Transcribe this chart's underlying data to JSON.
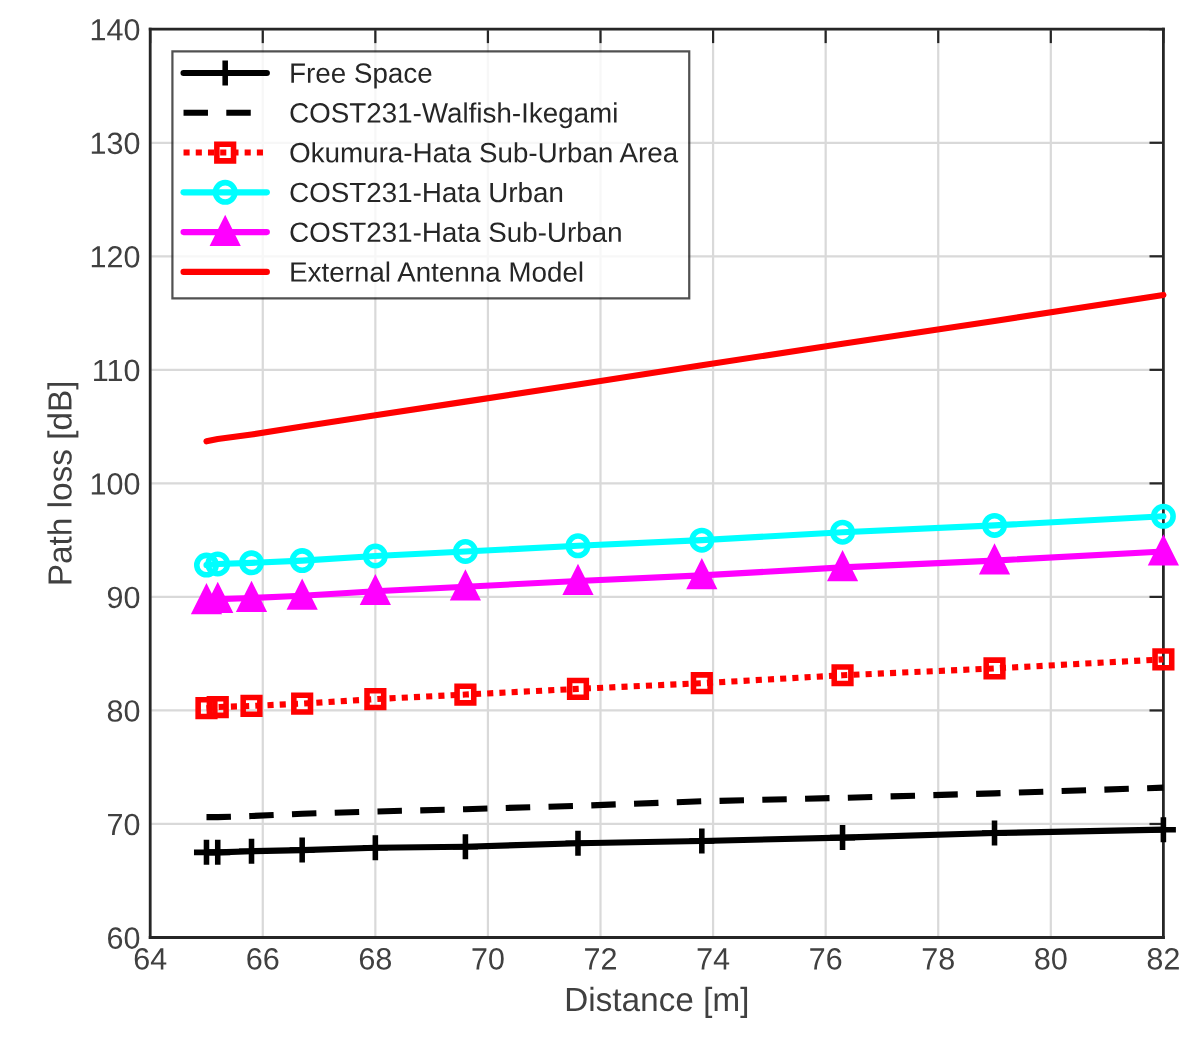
{
  "chart_data": {
    "type": "line",
    "xlabel": "Distance [m]",
    "ylabel": "Path loss [dB]",
    "xlim": [
      64,
      82
    ],
    "xticks": [
      64,
      66,
      68,
      70,
      72,
      74,
      76,
      78,
      80,
      82
    ],
    "ylim": [
      60,
      140
    ],
    "yticks": [
      60,
      70,
      80,
      90,
      100,
      110,
      120,
      130,
      140
    ],
    "grid": true,
    "legend": "top left",
    "x": [
      65,
      65.2,
      65.8,
      66.7,
      68,
      69.6,
      71.6,
      73.8,
      76.3,
      79,
      82
    ],
    "series": [
      {
        "name": "Free Space",
        "color": "#000000",
        "marker": "cross",
        "line_style": "solid",
        "values": [
          67.5,
          67.5,
          67.6,
          67.7,
          67.9,
          68.0,
          68.3,
          68.5,
          68.8,
          69.2,
          69.5
        ]
      },
      {
        "name": "COST231-Walfish-Ikegami",
        "color": "#000000",
        "marker": "none",
        "line_style": "dashed",
        "values": [
          70.6,
          70.6,
          70.7,
          70.9,
          71.1,
          71.3,
          71.6,
          72.0,
          72.3,
          72.7,
          73.2
        ]
      },
      {
        "name": "Okumura-Hata Sub-Urban Area",
        "color": "#ff0000",
        "marker": "square",
        "line_style": "dotted",
        "values": [
          80.2,
          80.3,
          80.4,
          80.6,
          81.0,
          81.4,
          81.9,
          82.4,
          83.1,
          83.7,
          84.5
        ]
      },
      {
        "name": "COST231-Hata Urban",
        "color": "#00ffff",
        "marker": "circle",
        "line_style": "solid",
        "values": [
          92.8,
          92.9,
          93.0,
          93.2,
          93.6,
          94.0,
          94.5,
          95.0,
          95.7,
          96.3,
          97.1
        ]
      },
      {
        "name": "COST231-Hata Sub-Urban",
        "color": "#ff00ff",
        "marker": "triangle",
        "line_style": "solid",
        "values": [
          89.7,
          89.8,
          89.9,
          90.1,
          90.5,
          90.9,
          91.4,
          91.9,
          92.6,
          93.2,
          94.0
        ]
      },
      {
        "name": "External Antenna Model",
        "color": "#ff0000",
        "marker": "none",
        "line_style": "solid",
        "values": [
          103.7,
          103.9,
          104.3,
          105.0,
          106.0,
          107.2,
          108.7,
          110.4,
          112.3,
          114.3,
          116.6
        ]
      }
    ]
  }
}
